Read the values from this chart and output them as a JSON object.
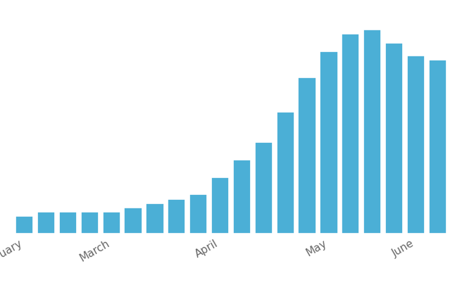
{
  "values": [
    4,
    5,
    5,
    5,
    5,
    6,
    7,
    8,
    9,
    13,
    17,
    21,
    28,
    36,
    42,
    46,
    47,
    44,
    41,
    40
  ],
  "bar_color": "#4bafd6",
  "background_color": "#ffffff",
  "grid_color": "#e8e8e8",
  "x_tick_positions": [
    0,
    4,
    9,
    14,
    18
  ],
  "x_tick_labels": [
    "February",
    "March",
    "April",
    "May",
    "June"
  ],
  "ylim": [
    0,
    52
  ],
  "figsize": [
    6.56,
    4.06
  ],
  "dpi": 100,
  "bar_width": 0.82,
  "tick_fontsize": 11,
  "tick_color": "#666666"
}
